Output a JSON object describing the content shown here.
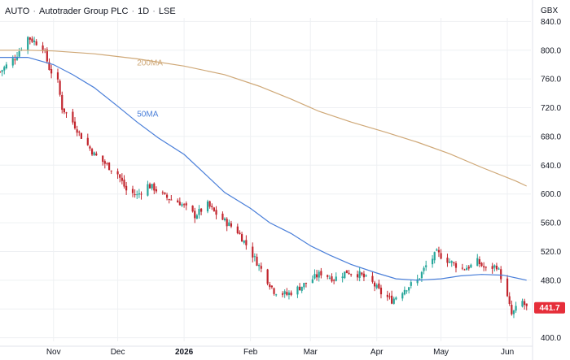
{
  "header": {
    "symbol": "AUTO",
    "name": "Autotrader Group PLC",
    "interval": "1D",
    "exchange": "LSE",
    "separator": "·"
  },
  "currency": "GBX",
  "colors": {
    "up": "#26a69a",
    "down": "#c2262e",
    "ma50": "#4a7fd9",
    "ma200": "#cfa877",
    "grid": "#eef0f3",
    "last_price_bg": "#e62e3a"
  },
  "chart_data": {
    "type": "candlestick",
    "title": "",
    "ylabel": "",
    "xlabel": "",
    "grid": true,
    "y_axis_position": "right",
    "ylim": [
      395,
      845
    ],
    "y_ticks": [
      400.0,
      440.0,
      480.0,
      520.0,
      560.0,
      600.0,
      640.0,
      680.0,
      720.0,
      760.0,
      800.0,
      840.0
    ],
    "y_tick_labels": [
      "400.0",
      "440.0",
      "480.0",
      "520.0",
      "560.0",
      "600.0",
      "640.0",
      "680.0",
      "720.0",
      "760.0",
      "800.0",
      "840.0"
    ],
    "x_range": [
      "2025-10-07",
      "2026-06-12"
    ],
    "x_ticks": [
      {
        "label": "Nov",
        "date": "2025-11-01"
      },
      {
        "label": "Dec",
        "date": "2025-12-01"
      },
      {
        "label": "2026",
        "date": "2026-01-01",
        "bold": true
      },
      {
        "label": "Feb",
        "date": "2026-02-01"
      },
      {
        "label": "Mar",
        "date": "2026-03-01"
      },
      {
        "label": "Apr",
        "date": "2026-04-01"
      },
      {
        "label": "May",
        "date": "2026-05-01"
      },
      {
        "label": "Jun",
        "date": "2026-06-01"
      }
    ],
    "close_path": [
      [
        "2025-10-07",
        770
      ],
      [
        "2025-10-14",
        790
      ],
      [
        "2025-10-20",
        818
      ],
      [
        "2025-10-27",
        805
      ],
      [
        "2025-10-30",
        775
      ],
      [
        "2025-11-03",
        755
      ],
      [
        "2025-11-05",
        720
      ],
      [
        "2025-11-10",
        700
      ],
      [
        "2025-11-14",
        680
      ],
      [
        "2025-11-20",
        655
      ],
      [
        "2025-11-26",
        640
      ],
      [
        "2025-12-01",
        628
      ],
      [
        "2025-12-05",
        605
      ],
      [
        "2025-12-10",
        598
      ],
      [
        "2025-12-15",
        612
      ],
      [
        "2025-12-18",
        608
      ],
      [
        "2025-12-23",
        596
      ],
      [
        "2025-12-30",
        588
      ],
      [
        "2026-01-06",
        570
      ],
      [
        "2026-01-12",
        585
      ],
      [
        "2026-01-15",
        575
      ],
      [
        "2026-01-20",
        562
      ],
      [
        "2026-01-26",
        548
      ],
      [
        "2026-02-01",
        520
      ],
      [
        "2026-02-06",
        495
      ],
      [
        "2026-02-12",
        465
      ],
      [
        "2026-02-18",
        460
      ],
      [
        "2026-02-24",
        470
      ],
      [
        "2026-03-01",
        480
      ],
      [
        "2026-03-06",
        490
      ],
      [
        "2026-03-12",
        482
      ],
      [
        "2026-03-18",
        492
      ],
      [
        "2026-03-24",
        488
      ],
      [
        "2026-03-30",
        476
      ],
      [
        "2026-04-03",
        462
      ],
      [
        "2026-04-08",
        452
      ],
      [
        "2026-04-14",
        468
      ],
      [
        "2026-04-20",
        480
      ],
      [
        "2026-04-24",
        500
      ],
      [
        "2026-04-29",
        518
      ],
      [
        "2026-05-05",
        506
      ],
      [
        "2026-05-11",
        496
      ],
      [
        "2026-05-15",
        500
      ],
      [
        "2026-05-18",
        506
      ],
      [
        "2026-05-22",
        495
      ],
      [
        "2026-05-27",
        500
      ],
      [
        "2026-05-29",
        485
      ],
      [
        "2026-06-01",
        455
      ],
      [
        "2026-06-03",
        432
      ],
      [
        "2026-06-05",
        440
      ],
      [
        "2026-06-08",
        450
      ],
      [
        "2026-06-10",
        441.7
      ]
    ],
    "candle_start": "2025-10-07",
    "candle_end": "2026-06-10",
    "series": [
      {
        "name": "200MA",
        "color": "#cfa877",
        "points": [
          [
            "2025-10-07",
            800
          ],
          [
            "2025-10-20",
            800
          ],
          [
            "2025-11-01",
            799
          ],
          [
            "2025-11-20",
            795
          ],
          [
            "2025-12-10",
            788
          ],
          [
            "2026-01-01",
            778
          ],
          [
            "2026-01-20",
            766
          ],
          [
            "2026-02-05",
            750
          ],
          [
            "2026-02-20",
            732
          ],
          [
            "2026-03-05",
            715
          ],
          [
            "2026-03-20",
            700
          ],
          [
            "2026-04-05",
            686
          ],
          [
            "2026-04-20",
            672
          ],
          [
            "2026-05-05",
            656
          ],
          [
            "2026-05-20",
            637
          ],
          [
            "2026-06-05",
            618
          ],
          [
            "2026-06-10",
            611
          ]
        ]
      },
      {
        "name": "50MA",
        "color": "#4a7fd9",
        "points": [
          [
            "2025-10-07",
            790
          ],
          [
            "2025-10-20",
            790
          ],
          [
            "2025-11-01",
            780
          ],
          [
            "2025-11-10",
            766
          ],
          [
            "2025-11-20",
            748
          ],
          [
            "2025-12-01",
            722
          ],
          [
            "2025-12-10",
            700
          ],
          [
            "2025-12-20",
            678
          ],
          [
            "2026-01-01",
            655
          ],
          [
            "2026-01-10",
            630
          ],
          [
            "2026-01-20",
            602
          ],
          [
            "2026-02-01",
            580
          ],
          [
            "2026-02-10",
            560
          ],
          [
            "2026-02-20",
            545
          ],
          [
            "2026-03-01",
            528
          ],
          [
            "2026-03-10",
            515
          ],
          [
            "2026-03-20",
            502
          ],
          [
            "2026-04-01",
            490
          ],
          [
            "2026-04-10",
            482
          ],
          [
            "2026-04-20",
            480
          ],
          [
            "2026-05-01",
            482
          ],
          [
            "2026-05-10",
            486
          ],
          [
            "2026-05-20",
            488
          ],
          [
            "2026-05-30",
            487
          ],
          [
            "2026-06-10",
            480
          ]
        ]
      }
    ],
    "last_price": 441.7,
    "last_price_label": "441.7",
    "legend_position": "inline"
  }
}
